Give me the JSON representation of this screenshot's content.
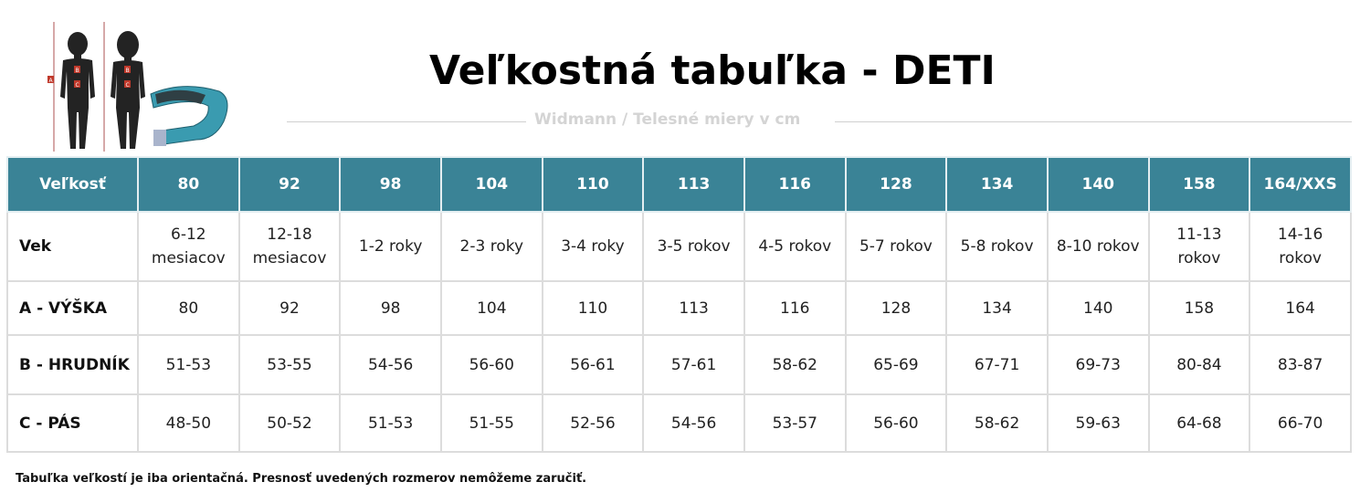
{
  "title": "Veľkostná tabuľka - DETI",
  "subtitle": "Widmann / Telesné miery v cm",
  "illustration": {
    "labels": [
      "A",
      "B",
      "C"
    ],
    "tape_numbers": [
      "12",
      "13",
      "2",
      "1",
      "0"
    ]
  },
  "colors": {
    "header_bg": "#3a8396",
    "header_text": "#ffffff",
    "border": "#dcdcdc"
  },
  "table": {
    "headers": [
      "Veľkosť",
      "80",
      "92",
      "98",
      "104",
      "110",
      "113",
      "116",
      "128",
      "134",
      "140",
      "158",
      "164/XXS"
    ],
    "rows": [
      {
        "label": "Vek",
        "cells": [
          "6-12 mesiacov",
          "12-18 mesiacov",
          "1-2 roky",
          "2-3 roky",
          "3-4 roky",
          "3-5 rokov",
          "4-5 rokov",
          "5-7 rokov",
          "5-8 rokov",
          "8-10 rokov",
          "11-13 rokov",
          "14-16 rokov"
        ]
      },
      {
        "label": "A - VÝŠKA",
        "cells": [
          "80",
          "92",
          "98",
          "104",
          "110",
          "113",
          "116",
          "128",
          "134",
          "140",
          "158",
          "164"
        ]
      },
      {
        "label": "B - HRUDNÍK",
        "cells": [
          "51-53",
          "53-55",
          "54-56",
          "56-60",
          "56-61",
          "57-61",
          "58-62",
          "65-69",
          "67-71",
          "69-73",
          "80-84",
          "83-87"
        ]
      },
      {
        "label": "C - PÁS",
        "cells": [
          "48-50",
          "50-52",
          "51-53",
          "51-55",
          "52-56",
          "54-56",
          "53-57",
          "56-60",
          "58-62",
          "59-63",
          "64-68",
          "66-70"
        ]
      }
    ]
  },
  "footnote": "Tabuľka veľkostí je iba orientačná. Presnosť uvedených rozmerov nemôžeme zaručiť."
}
